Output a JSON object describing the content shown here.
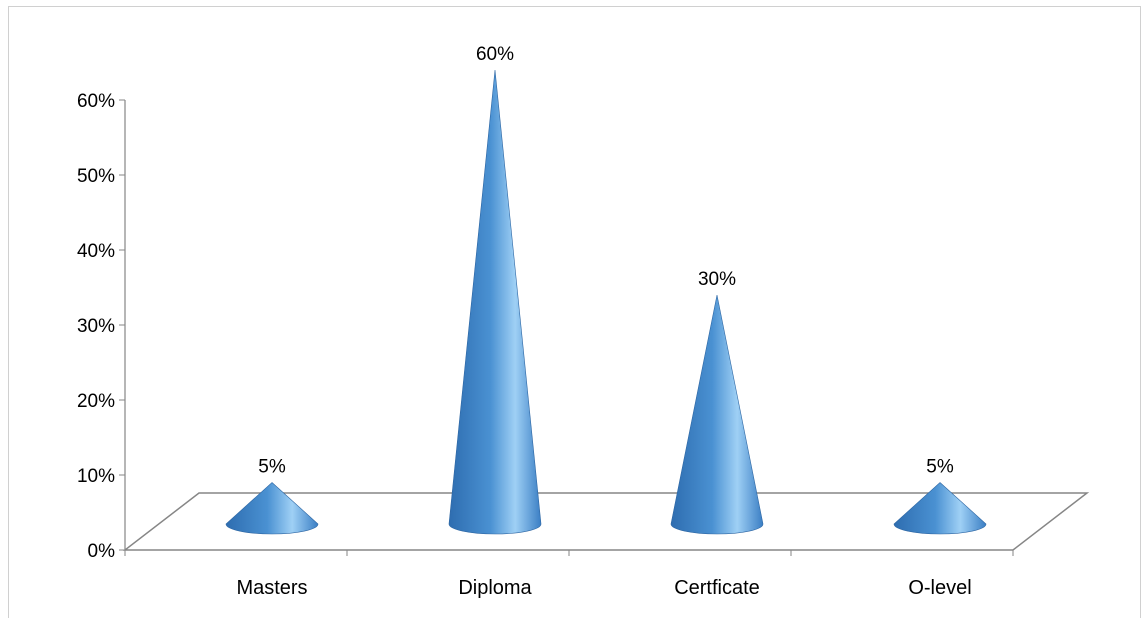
{
  "chart_data": {
    "type": "bar",
    "style": "3d-cone",
    "categories": [
      "Masters",
      "Diploma",
      "Certficate",
      "O-level"
    ],
    "values": [
      5,
      60,
      30,
      5
    ],
    "data_labels": [
      "5%",
      "60%",
      "30%",
      "5%"
    ],
    "ylim": [
      0,
      60
    ],
    "yticks": [
      0,
      10,
      20,
      30,
      40,
      50,
      60
    ],
    "ytick_labels": [
      "0%",
      "10%",
      "20%",
      "30%",
      "40%",
      "50%",
      "60%"
    ],
    "grid": false,
    "legend": "none",
    "colors": {
      "cone_base": "#3d84c6",
      "cone_light": "#9fd0f5",
      "cone_dark": "#2f6aa8",
      "axis": "#868686"
    }
  }
}
